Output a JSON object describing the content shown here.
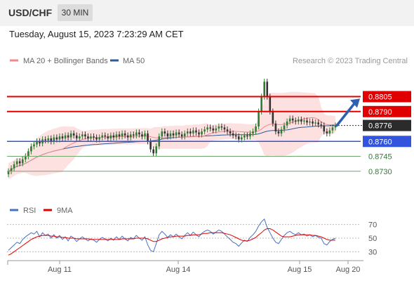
{
  "header": {
    "pair": "USD/CHF",
    "timeframe": "30 MIN"
  },
  "datetime": "Tuesday, August 15, 2023 7:23:29 AM CET",
  "colors": {
    "resistance": "#e00000",
    "support": "#3355dd",
    "target": "#70a870",
    "ma20": "#f08a8a",
    "ma50": "#2f5a9a",
    "bollinger_fill": "#fde0e0",
    "candle_up": "#2e7d32",
    "candle_down": "#333333",
    "arrow": "#2f5fb0",
    "rsi": "#4472c4",
    "rsi_ma": "#e00000"
  },
  "chart_data": [
    {
      "type": "candlestick",
      "legend": [
        {
          "name": "MA 20 + Bollinger Bands",
          "color": "#f08a8a"
        },
        {
          "name": "MA 50",
          "color": "#2f5a9a"
        }
      ],
      "credit": "Research © 2023 Trading Central",
      "x_ticks": [
        "Aug 11",
        "Aug 14",
        "Aug 15",
        "Aug 20"
      ],
      "ylim": [
        0.8715,
        0.884
      ],
      "levels": [
        {
          "value": 0.8805,
          "label": "0.8805",
          "kind": "resistance"
        },
        {
          "value": 0.879,
          "label": "0.8790",
          "kind": "resistance"
        },
        {
          "value": 0.8776,
          "label": "0.8776",
          "kind": "current"
        },
        {
          "value": 0.876,
          "label": "0.8760",
          "kind": "pivot"
        },
        {
          "value": 0.8745,
          "label": "0.8745",
          "kind": "target"
        },
        {
          "value": 0.873,
          "label": "0.8730",
          "kind": "target"
        }
      ],
      "close": [
        0.873,
        0.8733,
        0.8737,
        0.874,
        0.8738,
        0.8742,
        0.8745,
        0.875,
        0.8755,
        0.8757,
        0.876,
        0.8758,
        0.8762,
        0.8761,
        0.8763,
        0.876,
        0.8764,
        0.8762,
        0.8765,
        0.8763,
        0.8766,
        0.8764,
        0.8768,
        0.8766,
        0.8763,
        0.8765,
        0.8767,
        0.8765,
        0.8763,
        0.8765,
        0.8764,
        0.8762,
        0.8764,
        0.8766,
        0.8765,
        0.8763,
        0.8766,
        0.8764,
        0.8767,
        0.8765,
        0.8768,
        0.8766,
        0.8764,
        0.8767,
        0.8766,
        0.8769,
        0.8767,
        0.8765,
        0.8768,
        0.876,
        0.8752,
        0.8748,
        0.8755,
        0.8765,
        0.877,
        0.8768,
        0.8765,
        0.8768,
        0.8766,
        0.8769,
        0.8767,
        0.8765,
        0.8768,
        0.877,
        0.8768,
        0.8771,
        0.8769,
        0.8767,
        0.877,
        0.8772,
        0.8774,
        0.8773,
        0.8771,
        0.8773,
        0.8775,
        0.8774,
        0.8772,
        0.877,
        0.8768,
        0.8766,
        0.8765,
        0.8762,
        0.8764,
        0.8766,
        0.8765,
        0.8768,
        0.877,
        0.8775,
        0.879,
        0.8805,
        0.882,
        0.8805,
        0.879,
        0.8778,
        0.877,
        0.8768,
        0.8772,
        0.8776,
        0.878,
        0.8783,
        0.8781,
        0.878,
        0.8782,
        0.878,
        0.8781,
        0.8779,
        0.878,
        0.8778,
        0.8779,
        0.8777,
        0.8776,
        0.877,
        0.8768,
        0.8771,
        0.8774,
        0.8776
      ]
    },
    {
      "type": "line",
      "legend": [
        {
          "name": "RSI",
          "color": "#4472c4"
        },
        {
          "name": "9MA",
          "color": "#e00000"
        }
      ],
      "ylim": [
        20,
        80
      ],
      "y_ticks": [
        70,
        50,
        30
      ],
      "rsi": [
        32,
        36,
        40,
        44,
        42,
        48,
        52,
        55,
        58,
        56,
        60,
        52,
        58,
        54,
        56,
        50,
        55,
        50,
        54,
        48,
        52,
        46,
        53,
        50,
        45,
        49,
        52,
        49,
        46,
        49,
        47,
        44,
        48,
        51,
        49,
        46,
        50,
        47,
        52,
        48,
        53,
        49,
        46,
        51,
        49,
        54,
        50,
        47,
        52,
        40,
        32,
        30,
        42,
        55,
        60,
        56,
        51,
        55,
        52,
        56,
        52,
        49,
        54,
        58,
        54,
        59,
        55,
        52,
        57,
        60,
        62,
        60,
        56,
        59,
        62,
        60,
        56,
        52,
        48,
        44,
        42,
        38,
        43,
        47,
        45,
        51,
        55,
        60,
        68,
        74,
        78,
        66,
        58,
        50,
        44,
        42,
        48,
        54,
        58,
        60,
        57,
        55,
        58,
        55,
        56,
        53,
        55,
        52,
        54,
        51,
        50,
        42,
        40,
        45,
        48,
        50
      ],
      "rsi_ma": [
        25,
        27,
        30,
        33,
        36,
        39,
        42,
        45,
        48,
        50,
        52,
        53,
        54,
        54,
        54,
        53,
        53,
        52,
        52,
        51,
        51,
        50,
        50,
        50,
        49,
        49,
        49,
        49,
        49,
        48,
        48,
        48,
        48,
        48,
        48,
        48,
        48,
        48,
        48,
        48,
        49,
        49,
        49,
        49,
        49,
        50,
        50,
        50,
        50,
        49,
        47,
        45,
        45,
        47,
        49,
        50,
        51,
        52,
        52,
        53,
        53,
        53,
        53,
        54,
        54,
        55,
        55,
        55,
        56,
        57,
        57,
        58,
        58,
        58,
        58,
        58,
        57,
        56,
        55,
        53,
        51,
        49,
        47,
        46,
        46,
        47,
        49,
        51,
        55,
        58,
        62,
        64,
        64,
        62,
        59,
        56,
        53,
        52,
        52,
        52,
        53,
        54,
        55,
        55,
        55,
        55,
        55,
        54,
        54,
        53,
        52,
        50,
        48,
        47,
        47,
        47
      ]
    }
  ]
}
